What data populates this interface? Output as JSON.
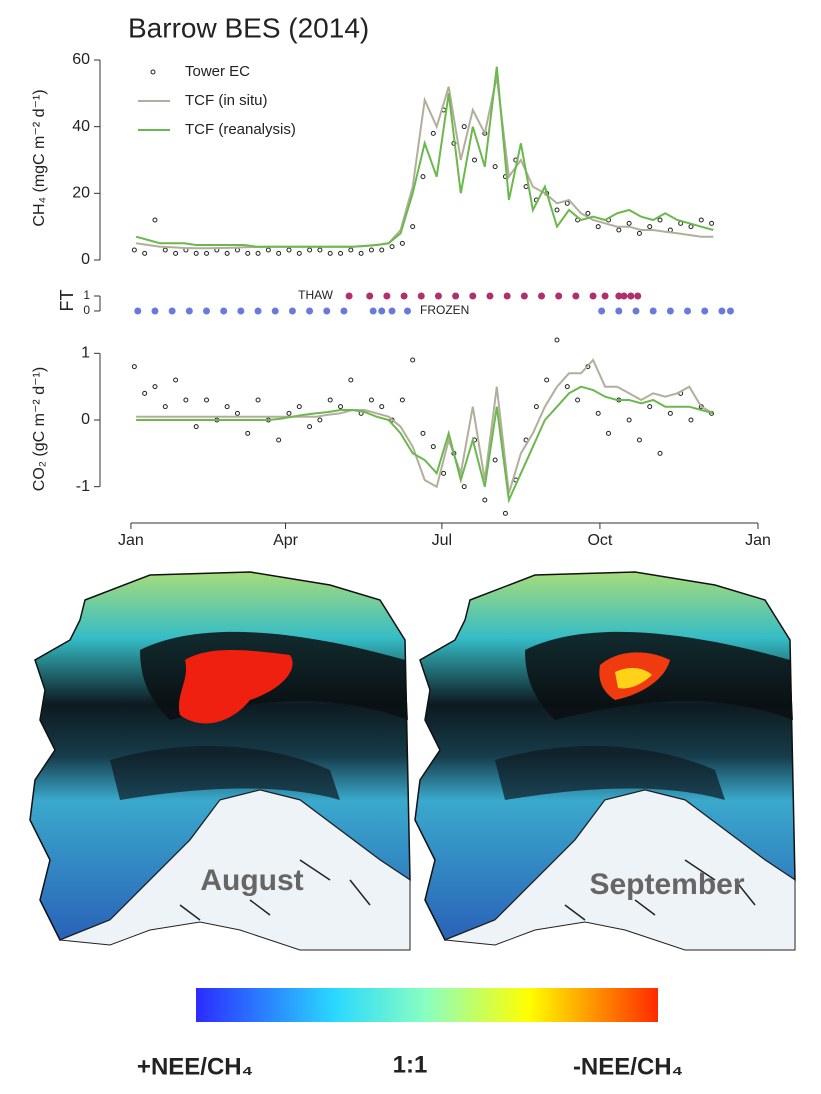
{
  "figure_title": "Barrow BES (2014)",
  "chart_data": [
    {
      "type": "line",
      "ylabel": "CH₄ (mgC m⁻² d⁻¹)",
      "xlim": [
        -17,
        373
      ],
      "ylim": [
        -2.4,
        63.6
      ],
      "yticks": [
        0,
        20,
        40,
        60
      ],
      "legend": "upper left",
      "series": [
        {
          "name": "Tower EC",
          "color": "#222222",
          "style": "points",
          "filled": false,
          "x": [
            3,
            9,
            15,
            21,
            27,
            33,
            39,
            45,
            51,
            57,
            63,
            69,
            75,
            81,
            87,
            93,
            99,
            105,
            111,
            117,
            123,
            129,
            135,
            141,
            147,
            153,
            159,
            165,
            171,
            177,
            183,
            189,
            195,
            201,
            207,
            213,
            219,
            225,
            231,
            237,
            243,
            249,
            255,
            261,
            267,
            273,
            279,
            285,
            291,
            297,
            303,
            309,
            315,
            321,
            327,
            333,
            339
          ],
          "values": [
            3,
            2,
            12,
            3,
            2,
            3,
            2,
            2,
            3,
            2,
            3,
            2,
            2,
            3,
            2,
            3,
            2,
            3,
            3,
            2,
            2,
            3,
            2,
            3,
            3,
            4,
            5,
            10,
            25,
            38,
            45,
            35,
            40,
            30,
            38,
            28,
            25,
            30,
            22,
            18,
            20,
            15,
            17,
            12,
            14,
            10,
            12,
            9,
            11,
            8,
            10,
            12,
            9,
            11,
            10,
            12,
            11
          ]
        },
        {
          "name": "TCF (in situ)",
          "color": "#b3ae9c",
          "style": "line",
          "x": [
            4,
            11,
            18,
            25,
            32,
            39,
            46,
            53,
            60,
            67,
            74,
            81,
            88,
            95,
            102,
            109,
            116,
            123,
            130,
            137,
            144,
            151,
            158,
            165,
            172,
            179,
            186,
            193,
            200,
            207,
            214,
            221,
            228,
            235,
            242,
            249,
            256,
            263,
            270,
            277,
            284,
            291,
            298,
            305,
            312,
            319,
            326,
            333,
            340
          ],
          "values": [
            5,
            4.5,
            4,
            3.8,
            3.6,
            3.5,
            3.5,
            3.6,
            3.7,
            3.8,
            3.9,
            4,
            4,
            4,
            4,
            4,
            4,
            4,
            4,
            4.2,
            4.5,
            5,
            9,
            22,
            48,
            40,
            52,
            30,
            45,
            38,
            55,
            25,
            30,
            22,
            20,
            17,
            18,
            14,
            12,
            11,
            10,
            10,
            9,
            9,
            8.5,
            8,
            7.5,
            7,
            7
          ]
        },
        {
          "name": "TCF (reanalysis)",
          "color": "#6bb84c",
          "style": "line",
          "x": [
            4,
            11,
            18,
            25,
            32,
            39,
            46,
            53,
            60,
            67,
            74,
            81,
            88,
            95,
            102,
            109,
            116,
            123,
            130,
            137,
            144,
            151,
            158,
            165,
            172,
            179,
            186,
            193,
            200,
            207,
            214,
            221,
            228,
            235,
            242,
            249,
            256,
            263,
            270,
            277,
            284,
            291,
            298,
            305,
            312,
            319,
            326,
            333,
            340
          ],
          "values": [
            7,
            6,
            5,
            5,
            5,
            4.5,
            4.5,
            4.5,
            4.5,
            4.5,
            4,
            4,
            4,
            4,
            4,
            4,
            4,
            4,
            4,
            4.2,
            4.5,
            5,
            8,
            20,
            35,
            25,
            50,
            20,
            40,
            28,
            58,
            18,
            35,
            15,
            22,
            10,
            15,
            12,
            13,
            12,
            14,
            15,
            13,
            12,
            14,
            12,
            11,
            10,
            9
          ]
        }
      ]
    },
    {
      "type": "scatter",
      "ylabel": "FT",
      "xlim": [
        -17,
        373
      ],
      "ylim": [
        -0.47,
        1.87
      ],
      "yticks": [
        0,
        1
      ],
      "series": [
        {
          "name": "THAW",
          "color": "#b0306a",
          "style": "points",
          "filled": true,
          "x": [
            128,
            140,
            150,
            160,
            170,
            180,
            190,
            200,
            210,
            220,
            230,
            240,
            250,
            260,
            270,
            277,
            285,
            288,
            292,
            296
          ],
          "values": [
            1,
            1,
            1,
            1,
            1,
            1,
            1,
            1,
            1,
            1,
            1,
            1,
            1,
            1,
            1,
            1,
            1,
            1,
            1,
            1
          ]
        },
        {
          "name": "FROZEN",
          "color": "#6a7ad8",
          "style": "points",
          "filled": true,
          "x": [
            5,
            15,
            25,
            35,
            45,
            55,
            65,
            75,
            85,
            95,
            105,
            115,
            125,
            142,
            147,
            153,
            162,
            275,
            285,
            295,
            305,
            315,
            325,
            335,
            345,
            350
          ],
          "values": [
            0,
            0,
            0,
            0,
            0,
            0,
            0,
            0,
            0,
            0,
            0,
            0,
            0,
            0,
            0,
            0,
            0,
            0,
            0,
            0,
            0,
            0,
            0,
            0,
            0,
            0
          ]
        }
      ]
    },
    {
      "type": "line",
      "ylabel": "CO₂ (gC m⁻² d⁻¹)",
      "xlim": [
        -17,
        373
      ],
      "ylim": [
        -1.5,
        1.23
      ],
      "yticks": [
        -1,
        0,
        1
      ],
      "xticks": [
        {
          "value": 1,
          "label": "Jan"
        },
        {
          "value": 91,
          "label": "Apr"
        },
        {
          "value": 182,
          "label": "Jul"
        },
        {
          "value": 274,
          "label": "Oct"
        },
        {
          "value": 366,
          "label": "Jan"
        }
      ],
      "series": [
        {
          "color": "#222222",
          "style": "points",
          "filled": false,
          "x": [
            3,
            9,
            15,
            21,
            27,
            33,
            39,
            45,
            51,
            57,
            63,
            69,
            75,
            81,
            87,
            93,
            99,
            105,
            111,
            117,
            123,
            129,
            135,
            141,
            147,
            153,
            159,
            165,
            171,
            177,
            183,
            189,
            195,
            201,
            207,
            213,
            219,
            225,
            231,
            237,
            243,
            249,
            255,
            261,
            267,
            273,
            279,
            285,
            291,
            297,
            303,
            309,
            315,
            321,
            327,
            333,
            339
          ],
          "values": [
            0.8,
            0.4,
            0.5,
            0.2,
            0.6,
            0.3,
            -0.1,
            0.3,
            0.0,
            0.2,
            0.1,
            -0.2,
            0.3,
            0.0,
            -0.3,
            0.1,
            0.2,
            -0.1,
            0.0,
            0.3,
            0.2,
            0.6,
            0.1,
            0.3,
            0.2,
            0.0,
            0.3,
            0.9,
            -0.2,
            -0.4,
            -0.8,
            -0.5,
            -1.0,
            -0.3,
            -1.2,
            -0.6,
            -1.4,
            -0.9,
            -0.3,
            0.2,
            0.6,
            1.2,
            0.5,
            0.3,
            0.8,
            0.1,
            -0.2,
            0.3,
            0.0,
            -0.3,
            0.2,
            -0.5,
            0.1,
            0.4,
            0.0,
            0.2,
            0.1
          ]
        },
        {
          "color": "#b3ae9c",
          "style": "line",
          "x": [
            4,
            11,
            18,
            25,
            32,
            39,
            46,
            53,
            60,
            67,
            74,
            81,
            88,
            95,
            102,
            109,
            116,
            123,
            130,
            137,
            144,
            151,
            158,
            165,
            172,
            179,
            186,
            193,
            200,
            207,
            214,
            221,
            228,
            235,
            242,
            249,
            256,
            263,
            270,
            277,
            284,
            291,
            298,
            305,
            312,
            319,
            326,
            333,
            340
          ],
          "values": [
            0.05,
            0.05,
            0.05,
            0.05,
            0.05,
            0.05,
            0.05,
            0.05,
            0.05,
            0.05,
            0.05,
            0.05,
            0.05,
            0.05,
            0.05,
            0.05,
            0.08,
            0.1,
            0.15,
            0.15,
            0.1,
            0.05,
            -0.1,
            -0.4,
            -0.9,
            -1.0,
            -0.3,
            -0.8,
            0.2,
            -0.9,
            0.5,
            -1.1,
            -0.5,
            -0.2,
            0.2,
            0.5,
            0.7,
            0.7,
            0.9,
            0.5,
            0.5,
            0.4,
            0.3,
            0.4,
            0.35,
            0.4,
            0.5,
            0.2,
            0.1
          ]
        },
        {
          "color": "#6bb84c",
          "style": "line",
          "x": [
            4,
            11,
            18,
            25,
            32,
            39,
            46,
            53,
            60,
            67,
            74,
            81,
            88,
            95,
            102,
            109,
            116,
            123,
            130,
            137,
            144,
            151,
            158,
            165,
            172,
            179,
            186,
            193,
            200,
            207,
            214,
            221,
            228,
            235,
            242,
            249,
            256,
            263,
            270,
            277,
            284,
            291,
            298,
            305,
            312,
            319,
            326,
            333,
            340
          ],
          "values": [
            0.0,
            0.0,
            0.0,
            0.0,
            0.0,
            0.0,
            0.0,
            0.0,
            0.0,
            0.0,
            0.0,
            0.0,
            0.02,
            0.05,
            0.08,
            0.1,
            0.12,
            0.15,
            0.15,
            0.12,
            0.05,
            0.0,
            -0.2,
            -0.5,
            -0.6,
            -0.8,
            -0.2,
            -0.9,
            -0.3,
            -1.0,
            0.2,
            -1.2,
            -0.8,
            -0.4,
            0.0,
            0.2,
            0.4,
            0.5,
            0.45,
            0.35,
            0.3,
            0.3,
            0.25,
            0.3,
            0.2,
            0.2,
            0.2,
            0.15,
            0.1
          ]
        }
      ]
    }
  ],
  "maps": [
    {
      "label": "August"
    },
    {
      "label": "September"
    }
  ],
  "colorbar": {
    "labels": [
      "+NEE/CH₄",
      "1:1",
      "-NEE/CH₄"
    ]
  }
}
